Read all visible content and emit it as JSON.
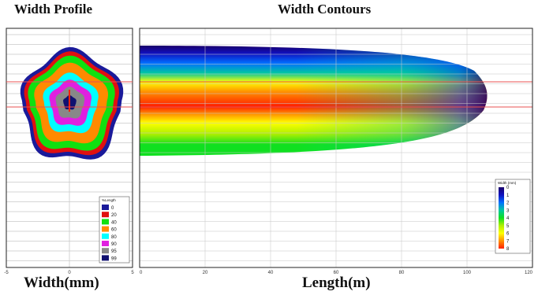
{
  "chart_data": [
    {
      "type": "area",
      "title": "Width Profile",
      "xlabel": "Width(mm)",
      "xlim": [
        -5,
        5
      ],
      "x_ticks": [
        "-5",
        "0",
        "5"
      ],
      "legend": {
        "title": "%Length",
        "position": "bottom-right",
        "entries": [
          "0",
          "20",
          "40",
          "60",
          "80",
          "90",
          "95",
          "99"
        ]
      },
      "series": [
        {
          "pct_length": 0,
          "color": "#1a1a9a",
          "half_width_mm": 3.9
        },
        {
          "pct_length": 20,
          "color": "#e01010",
          "half_width_mm": 3.6
        },
        {
          "pct_length": 40,
          "color": "#10e010",
          "half_width_mm": 3.3
        },
        {
          "pct_length": 60,
          "color": "#ff8a00",
          "half_width_mm": 2.8
        },
        {
          "pct_length": 80,
          "color": "#00ffff",
          "half_width_mm": 2.1
        },
        {
          "pct_length": 90,
          "color": "#e020e0",
          "half_width_mm": 1.6
        },
        {
          "pct_length": 95,
          "color": "#888888",
          "half_width_mm": 1.1
        },
        {
          "pct_length": 99,
          "color": "#101070",
          "half_width_mm": 0.5
        }
      ],
      "grid": true
    },
    {
      "type": "heatmap",
      "title": "Width Contours",
      "xlabel": "Length(m)",
      "xlim": [
        0,
        120
      ],
      "x_ticks": [
        "0",
        "20",
        "40",
        "60",
        "80",
        "100",
        "120"
      ],
      "contour_extent_m": 107,
      "colorbar": {
        "title": "Width (mm)",
        "position": "bottom-right",
        "ticks": [
          "0",
          "1",
          "2",
          "3",
          "4",
          "5",
          "6",
          "7",
          "8"
        ],
        "colors": [
          "#1a006a",
          "#1010c0",
          "#0070ff",
          "#00c8a0",
          "#10e020",
          "#b0f000",
          "#ffff00",
          "#ff9000",
          "#ff2000"
        ]
      },
      "grid": true
    }
  ]
}
